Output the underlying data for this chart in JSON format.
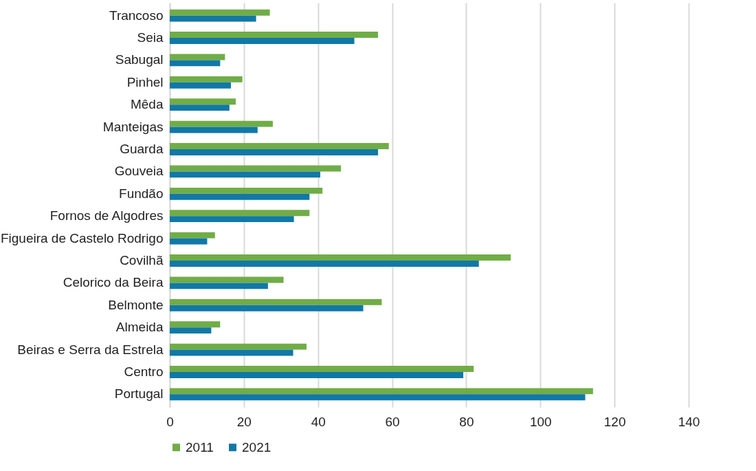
{
  "chart_data": {
    "type": "bar",
    "orientation": "horizontal",
    "categories": [
      "Trancoso",
      "Seia",
      "Sabugal",
      "Pinhel",
      "Mêda",
      "Manteigas",
      "Guarda",
      "Gouveia",
      "Fundão",
      "Fornos de Algodres",
      "Figueira de Castelo Rodrigo",
      "Covilhã",
      "Celorico da Beira",
      "Belmonte",
      "Almeida",
      "Beiras e Serra da Estrela",
      "Centro",
      "Portugal"
    ],
    "series": [
      {
        "name": "2011",
        "color": "#70ad47",
        "values": [
          27.0,
          56.2,
          14.9,
          19.6,
          17.8,
          27.8,
          59.1,
          46.2,
          41.2,
          37.7,
          12.2,
          92.0,
          30.7,
          57.2,
          13.6,
          36.9,
          82.0,
          114.2
        ]
      },
      {
        "name": "2021",
        "color": "#1278a6",
        "values": [
          23.3,
          49.8,
          13.6,
          16.5,
          16.1,
          23.7,
          56.2,
          40.6,
          37.7,
          33.5,
          10.1,
          83.4,
          26.5,
          52.2,
          11.2,
          33.3,
          79.2,
          112.1
        ]
      }
    ],
    "xlim": [
      0,
      140
    ],
    "xticks": [
      0,
      20,
      40,
      60,
      80,
      100,
      120,
      140
    ],
    "grid": "x",
    "legend": "bottom"
  }
}
